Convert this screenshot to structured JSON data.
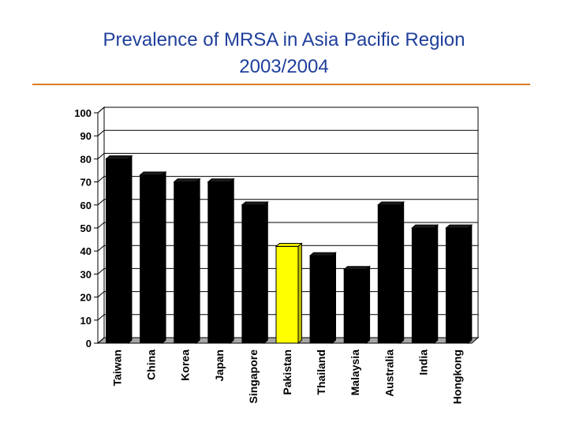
{
  "title": {
    "line1": "Prevalence of MRSA in Asia Pacific Region",
    "line2": "2003/2004"
  },
  "colors": {
    "title": "#1f3f9b",
    "rule": "#e07b1f",
    "bar": "#000000",
    "highlight_bar": "#ffff00",
    "plot_background": "#ffffff",
    "gridline": "#000000",
    "floor": "#a6a6a6"
  },
  "chart_data": {
    "type": "bar",
    "style": "3d",
    "categories": [
      "Taiwan",
      "China",
      "Korea",
      "Japan",
      "Singapore",
      "Pakistan",
      "Thailand",
      "Malaysia",
      "Australia",
      "India",
      "Hongkong"
    ],
    "values": [
      80,
      73,
      70,
      70,
      60,
      42,
      38,
      32,
      60,
      50,
      50
    ],
    "highlighted_category": "Pakistan",
    "title": "",
    "xlabel": "",
    "ylabel": "",
    "ylim": [
      0,
      100
    ],
    "yticks": [
      0,
      10,
      20,
      30,
      40,
      50,
      60,
      70,
      80,
      90,
      100
    ],
    "grid": true,
    "legend": "none"
  }
}
